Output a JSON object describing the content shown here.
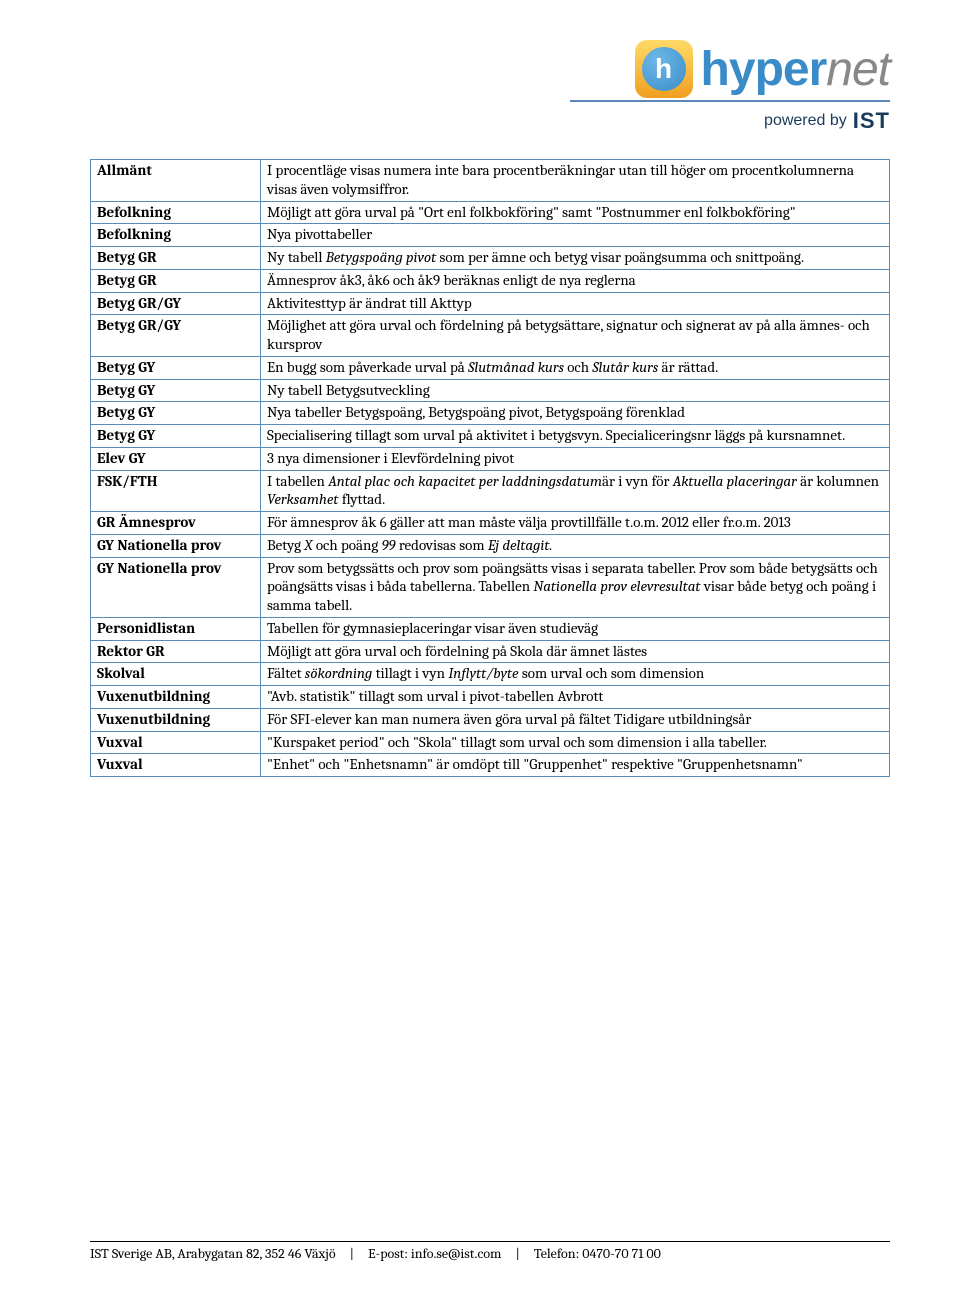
{
  "logo": {
    "icon_letter": "h",
    "brand_part1": "hyper",
    "brand_part2": "net",
    "powered_label": "powered by",
    "powered_brand": "IST"
  },
  "table": {
    "rows": [
      {
        "cat": "Allmänt",
        "desc_html": "I procentläge visas numera inte bara procentberäkningar utan till höger om procentkolumnerna visas även volymsiffror."
      },
      {
        "cat": "Befolkning",
        "desc_html": "Möjligt att göra urval på \"Ort enl folkbokföring\" samt \"Postnummer enl folkbokföring\""
      },
      {
        "cat": "Befolkning",
        "desc_html": "Nya pivottabeller"
      },
      {
        "cat": "Betyg GR",
        "desc_html": "Ny tabell <span class=\"italic\">Betygspoäng pivot</span> som per ämne och betyg visar poängsumma och snittpoäng."
      },
      {
        "cat": "Betyg GR",
        "desc_html": "Ämnesprov åk3, åk6 och åk9 beräknas enligt de nya reglerna"
      },
      {
        "cat": "Betyg GR/GY",
        "desc_html": "Aktivitesttyp är ändrat till Akttyp"
      },
      {
        "cat": "Betyg GR/GY",
        "desc_html": "Möjlighet att göra urval och fördelning på betygsättare, signatur och signerat av på alla ämnes- och kursprov"
      },
      {
        "cat": "Betyg GY",
        "desc_html": "En bugg som påverkade urval på <span class=\"italic\">Slutmånad kurs</span> och <span class=\"italic\">Slutår kurs</span> är rättad."
      },
      {
        "cat": "Betyg GY",
        "desc_html": "Ny tabell Betygsutveckling"
      },
      {
        "cat": "Betyg GY",
        "desc_html": "Nya tabeller Betygspoäng, Betygspoäng pivot, Betygspoäng förenklad"
      },
      {
        "cat": "Betyg GY",
        "desc_html": "Specialisering tillagt som urval på aktivitet i betygsvyn. Specialiceringsnr läggs på kursnamnet."
      },
      {
        "cat": "Elev GY",
        "desc_html": "3 nya dimensioner i Elevfördelning pivot"
      },
      {
        "cat": "FSK/FTH",
        "desc_html": "I tabellen <span class=\"italic\">Antal plac och kapacitet per laddningsdatum</span>är i vyn för <span class=\"italic\">Aktuella placeringar</span> är kolumnen <span class=\"italic\">Verksamhet</span> flyttad."
      },
      {
        "cat": "GR Ämnesprov",
        "desc_html": "För ämnesprov åk 6 gäller att man måste välja provtillfälle t.o.m. 2012 eller fr.o.m. 2013"
      },
      {
        "cat": "GY Nationella prov",
        "desc_html": "Betyg <span class=\"italic\">X</span> och poäng <span class=\"italic\">99</span> redovisas som <span class=\"italic\">Ej deltagit.</span>"
      },
      {
        "cat": "GY Nationella prov",
        "desc_html": "Prov som betygssätts och prov som poängsätts visas i separata tabeller. Prov som både betygsätts och poängsätts visas i båda tabellerna.  Tabellen <span class=\"italic\">Nationella prov elevresultat</span> visar både betyg och poäng i samma tabell."
      },
      {
        "cat": "Personidlistan",
        "desc_html": "Tabellen för gymnasieplaceringar visar även studieväg"
      },
      {
        "cat": "Rektor GR",
        "desc_html": "Möjligt att göra urval och fördelning på Skola där ämnet lästes"
      },
      {
        "cat": "Skolval",
        "desc_html": "Fältet <span class=\"italic\">sökordning</span> tillagt i vyn <span class=\"italic\">Inflytt/byte</span> som urval och som dimension"
      },
      {
        "cat": "Vuxenutbildning",
        "desc_html": "\"Avb. statistik\" tillagt som urval i pivot-tabellen Avbrott"
      },
      {
        "cat": "Vuxenutbildning",
        "desc_html": "För SFI-elever kan man numera även göra urval på fältet Tidigare utbildningsår"
      },
      {
        "cat": "Vuxval",
        "desc_html": "\"Kurspaket period\" och \"Skola\" tillagt som urval och som dimension i alla tabeller."
      },
      {
        "cat": "Vuxval",
        "desc_html": "\"Enhet\" och \"Enhetsnamn\" är omdöpt till \"Gruppenhet\" respektive \"Gruppenhetsnamn\""
      }
    ]
  },
  "footer": {
    "company": "IST Sverige AB, Arabygatan 82, 352 46 Växjö",
    "email_label": "E-post: info.se@ist.com",
    "phone_label": "Telefon: 0470-70 71 00"
  }
}
